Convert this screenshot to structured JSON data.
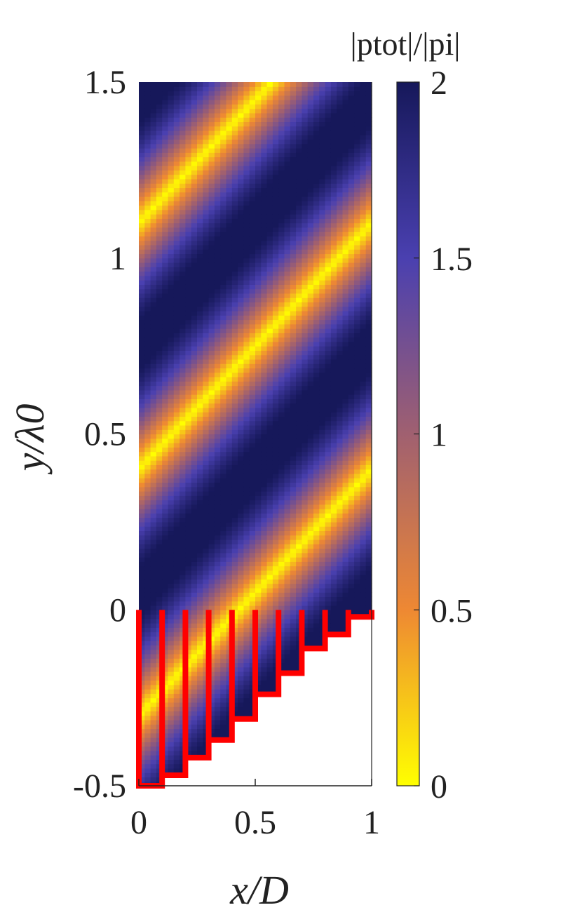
{
  "chart_data": {
    "type": "heatmap",
    "title": "",
    "xlabel": "x/D",
    "ylabel": "y/λ0",
    "xlim": [
      0,
      1
    ],
    "ylim": [
      -0.5,
      1.5
    ],
    "x_ticks": [
      {
        "value": 0,
        "label": "0"
      },
      {
        "value": 0.5,
        "label": "0.5"
      },
      {
        "value": 1,
        "label": "1"
      }
    ],
    "y_ticks": [
      {
        "value": -0.5,
        "label": "-0.5"
      },
      {
        "value": 0,
        "label": "0"
      },
      {
        "value": 0.5,
        "label": "0.5"
      },
      {
        "value": 1,
        "label": "1"
      },
      {
        "value": 1.5,
        "label": "1.5"
      }
    ],
    "colorbar": {
      "title": "|ptot|/|pi|",
      "range": [
        0,
        2
      ],
      "ticks": [
        {
          "value": 0,
          "label": "0"
        },
        {
          "value": 0.5,
          "label": "0.5"
        },
        {
          "value": 1,
          "label": "1"
        },
        {
          "value": 1.5,
          "label": "1.5"
        },
        {
          "value": 2,
          "label": "2"
        }
      ],
      "colors": [
        "#ffff00",
        "#ee8833",
        "#a06070",
        "#4a40b0",
        "#16185a"
      ]
    },
    "field": {
      "description_values": "normalized total pressure magnitude, minima ~0 along diagonal bands, maxima ~2",
      "band_slope": 0.7,
      "band_offsets_at_x0": [
        -0.3,
        0.35,
        1.05
      ],
      "value_range": [
        0,
        2
      ]
    },
    "staircase": {
      "color": "#ff0000",
      "steps": [
        {
          "x0": 0.0,
          "x1": 0.1,
          "depth": -0.5
        },
        {
          "x0": 0.1,
          "x1": 0.2,
          "depth": -0.47
        },
        {
          "x0": 0.2,
          "x1": 0.3,
          "depth": -0.42
        },
        {
          "x0": 0.3,
          "x1": 0.4,
          "depth": -0.37
        },
        {
          "x0": 0.4,
          "x1": 0.5,
          "depth": -0.31
        },
        {
          "x0": 0.5,
          "x1": 0.6,
          "depth": -0.24
        },
        {
          "x0": 0.6,
          "x1": 0.7,
          "depth": -0.18
        },
        {
          "x0": 0.7,
          "x1": 0.8,
          "depth": -0.11
        },
        {
          "x0": 0.8,
          "x1": 0.9,
          "depth": -0.07
        },
        {
          "x0": 0.9,
          "x1": 1.0,
          "depth": -0.02
        }
      ]
    }
  }
}
